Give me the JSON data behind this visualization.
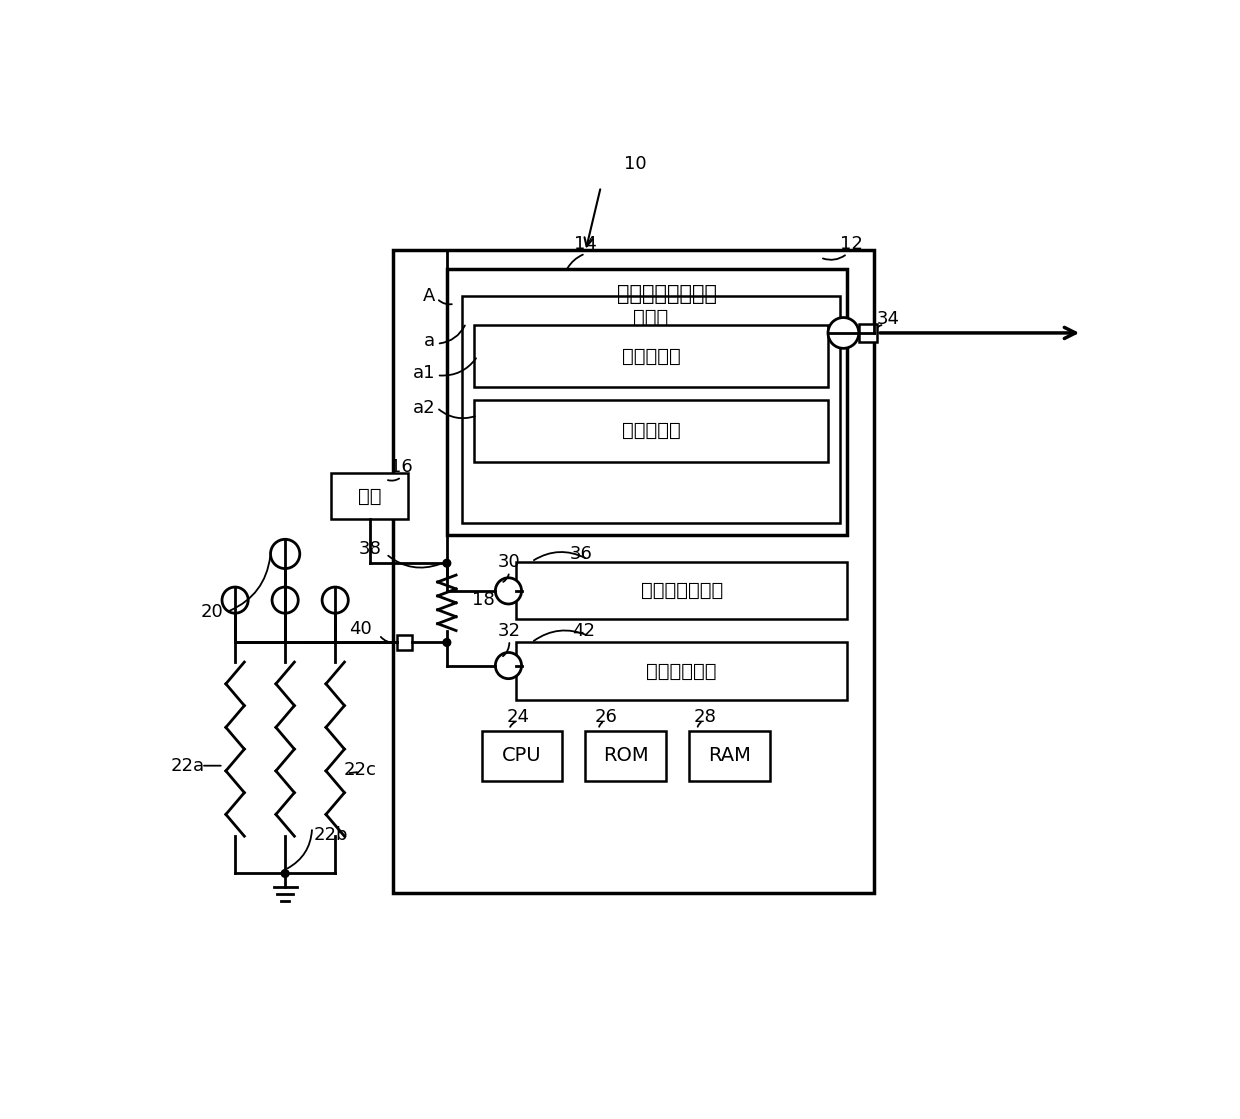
{
  "bg_color": "#ffffff",
  "line_color": "#000000",
  "chinese_labels": {
    "outer_box_label": "外部电阵确定单元",
    "relation_table": "关系表",
    "first_judge": "第一判断表",
    "second_judge": "第二判断表",
    "power_monitor": "电源电压监视部",
    "divider_monitor": "分压値监视部",
    "power_source": "电源",
    "cpu": "CPU",
    "rom": "ROM",
    "ram": "RAM"
  }
}
